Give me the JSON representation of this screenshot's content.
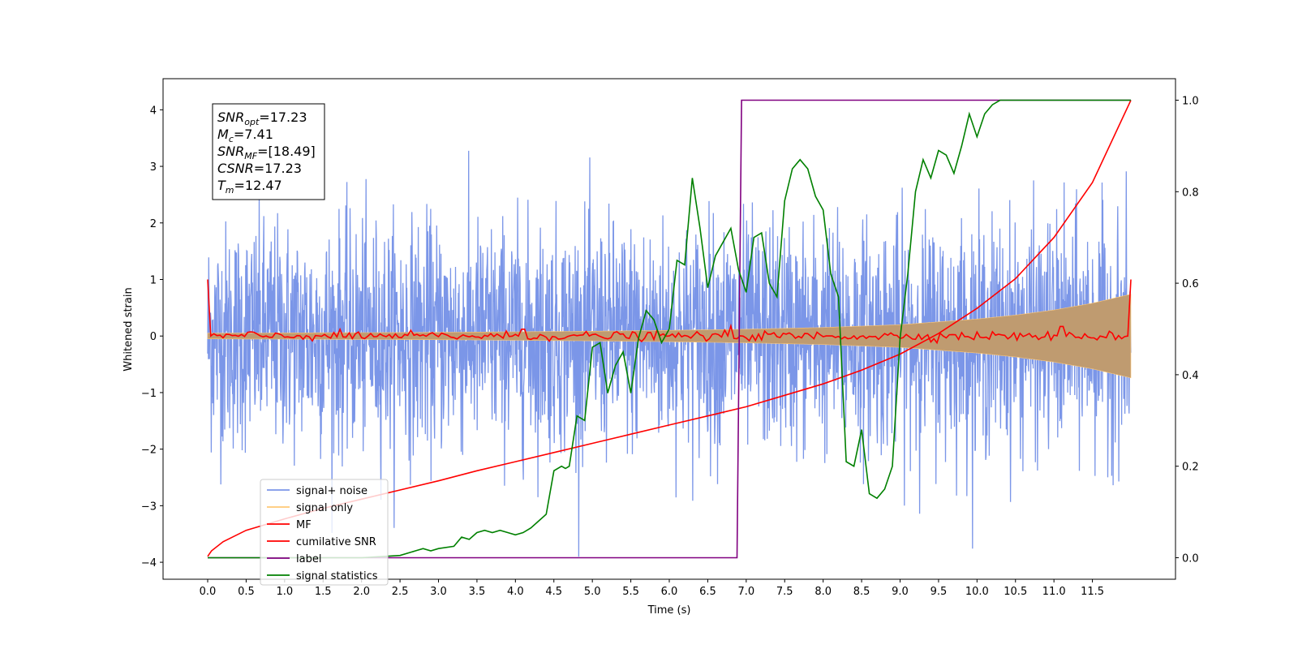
{
  "chart_data": {
    "type": "line",
    "title": "",
    "xlabel": "Time (s)",
    "ylabel": "Whitened strain",
    "xlim": [
      -0.58,
      12.58
    ],
    "ylim": [
      -4.3,
      4.55
    ],
    "y2lim": [
      -0.047,
      1.047
    ],
    "x_ticks": [
      0.0,
      0.5,
      1.0,
      1.5,
      2.0,
      2.5,
      3.0,
      3.5,
      4.0,
      4.5,
      5.0,
      5.5,
      6.0,
      6.5,
      7.0,
      7.5,
      8.0,
      8.5,
      9.0,
      9.5,
      10.0,
      10.5,
      11.0,
      11.5
    ],
    "x_tick_labels": [
      "0.0",
      "0.5",
      "1.0",
      "1.5",
      "2.0",
      "2.5",
      "3.0",
      "3.5",
      "4.0",
      "4.5",
      "5.0",
      "5.5",
      "6.0",
      "6.5",
      "7.0",
      "7.5",
      "8.0",
      "8.5",
      "9.0",
      "9.5",
      "10.0",
      "10.5",
      "11.0",
      "11.5"
    ],
    "y_ticks": [
      -4,
      -3,
      -2,
      -1,
      0,
      1,
      2,
      3,
      4
    ],
    "y_tick_labels": [
      "−4",
      "−3",
      "−2",
      "−1",
      "0",
      "1",
      "2",
      "3",
      "4"
    ],
    "y2_ticks": [
      0.0,
      0.2,
      0.4,
      0.6,
      0.8,
      1.0
    ],
    "y2_tick_labels": [
      "0.0",
      "0.2",
      "0.4",
      "0.6",
      "0.8",
      "1.0"
    ],
    "grid": false,
    "legend_placement": "lower-left",
    "annotations": [
      {
        "base": "SNR",
        "sub": "opt",
        "value": "=17.23"
      },
      {
        "base": "M",
        "sub": "c",
        "value": "=7.41"
      },
      {
        "base": "SNR",
        "sub": "MF",
        "value": "=[18.49]"
      },
      {
        "base": "CSNR",
        "sub": "",
        "value": "=17.23"
      },
      {
        "base": "T",
        "sub": "m",
        "value": "=12.47"
      }
    ],
    "series": [
      {
        "name": "signal+ noise",
        "axis": "left",
        "color": "#7b96e8",
        "kind": "noise",
        "x_range": [
          0.0,
          12.0
        ],
        "spread": 1.0,
        "min": -3.9,
        "max": 4.15
      },
      {
        "name": "signal only",
        "axis": "left",
        "color": "#ffc875",
        "kind": "chirp-envelope",
        "x": [
          0.0,
          1.0,
          2.0,
          3.0,
          4.0,
          5.0,
          6.0,
          7.0,
          8.0,
          9.0,
          10.0,
          10.5,
          11.0,
          11.5,
          12.0
        ],
        "amplitude": [
          0.05,
          0.055,
          0.06,
          0.065,
          0.075,
          0.085,
          0.1,
          0.12,
          0.15,
          0.2,
          0.3,
          0.37,
          0.46,
          0.58,
          0.74
        ]
      },
      {
        "name": "MF",
        "axis": "left",
        "color": "#ff0000",
        "kind": "mf",
        "x_range": [
          0.0,
          12.0
        ],
        "start": 1.0,
        "end": 1.0,
        "noise": 0.04,
        "spikes": [
          {
            "x": 6.8,
            "y": 0.18
          },
          {
            "x": 11.1,
            "y": 0.17
          },
          {
            "x": 4.1,
            "y": 0.12
          }
        ]
      },
      {
        "name": "cumilative SNR",
        "axis": "right",
        "color": "#ff0000",
        "kind": "line",
        "x": [
          0.0,
          0.05,
          0.2,
          0.5,
          1.0,
          1.5,
          2.0,
          2.5,
          3.0,
          3.5,
          4.0,
          4.5,
          5.0,
          5.5,
          6.0,
          6.5,
          7.0,
          7.5,
          8.0,
          8.5,
          9.0,
          9.5,
          10.0,
          10.5,
          11.0,
          11.5,
          12.0
        ],
        "y": [
          0.003,
          0.015,
          0.035,
          0.06,
          0.085,
          0.108,
          0.128,
          0.148,
          0.168,
          0.19,
          0.21,
          0.23,
          0.25,
          0.27,
          0.29,
          0.31,
          0.33,
          0.355,
          0.38,
          0.41,
          0.445,
          0.49,
          0.545,
          0.61,
          0.7,
          0.82,
          1.0
        ]
      },
      {
        "name": "label",
        "axis": "right",
        "color": "#800080",
        "kind": "line",
        "x": [
          0.0,
          6.88,
          6.94,
          12.0
        ],
        "y": [
          0.0,
          0.0,
          1.0,
          1.0
        ]
      },
      {
        "name": "signal statistics",
        "axis": "right",
        "color": "#008000",
        "kind": "line",
        "x": [
          0.0,
          1.0,
          2.0,
          2.5,
          2.7,
          2.8,
          2.9,
          3.0,
          3.2,
          3.3,
          3.4,
          3.5,
          3.6,
          3.7,
          3.8,
          3.9,
          4.0,
          4.1,
          4.2,
          4.3,
          4.4,
          4.5,
          4.6,
          4.65,
          4.7,
          4.8,
          4.9,
          5.0,
          5.1,
          5.2,
          5.3,
          5.4,
          5.5,
          5.6,
          5.7,
          5.8,
          5.9,
          6.0,
          6.1,
          6.2,
          6.3,
          6.4,
          6.5,
          6.6,
          6.7,
          6.8,
          6.9,
          7.0,
          7.1,
          7.2,
          7.3,
          7.4,
          7.5,
          7.6,
          7.7,
          7.8,
          7.9,
          8.0,
          8.1,
          8.2,
          8.3,
          8.4,
          8.5,
          8.6,
          8.7,
          8.8,
          8.9,
          9.0,
          9.1,
          9.2,
          9.3,
          9.4,
          9.5,
          9.6,
          9.7,
          9.8,
          9.9,
          10.0,
          10.1,
          10.2,
          10.3,
          10.5,
          11.0,
          11.5,
          12.0
        ],
        "y": [
          0.0,
          0.0,
          0.0,
          0.005,
          0.015,
          0.02,
          0.015,
          0.02,
          0.025,
          0.045,
          0.04,
          0.055,
          0.06,
          0.055,
          0.06,
          0.055,
          0.05,
          0.055,
          0.065,
          0.08,
          0.095,
          0.19,
          0.2,
          0.195,
          0.2,
          0.31,
          0.3,
          0.46,
          0.47,
          0.36,
          0.42,
          0.45,
          0.36,
          0.48,
          0.54,
          0.52,
          0.47,
          0.5,
          0.65,
          0.64,
          0.83,
          0.72,
          0.59,
          0.66,
          0.69,
          0.72,
          0.63,
          0.58,
          0.7,
          0.71,
          0.6,
          0.57,
          0.78,
          0.85,
          0.87,
          0.85,
          0.79,
          0.76,
          0.62,
          0.57,
          0.21,
          0.2,
          0.28,
          0.14,
          0.13,
          0.15,
          0.2,
          0.48,
          0.62,
          0.8,
          0.87,
          0.83,
          0.89,
          0.88,
          0.84,
          0.9,
          0.97,
          0.92,
          0.97,
          0.99,
          1.0,
          1.0,
          1.0,
          1.0,
          1.0
        ]
      }
    ]
  }
}
